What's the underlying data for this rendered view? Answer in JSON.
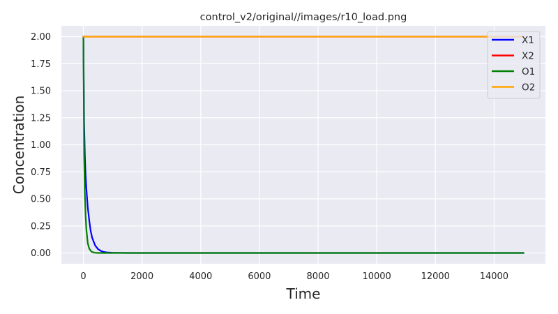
{
  "chart_data": {
    "type": "line",
    "title": "control_v2/original//images/r10_load.png",
    "xlabel": "Time",
    "ylabel": "Concentration",
    "xlim": [
      -750,
      15750
    ],
    "ylim": [
      -0.1,
      2.1
    ],
    "xticks": [
      0,
      2000,
      4000,
      6000,
      8000,
      10000,
      12000,
      14000
    ],
    "yticks": [
      0.0,
      0.25,
      0.5,
      0.75,
      1.0,
      1.25,
      1.5,
      1.75,
      2.0
    ],
    "ytick_labels": [
      "0.00",
      "0.25",
      "0.50",
      "0.75",
      "1.00",
      "1.25",
      "1.50",
      "1.75",
      "2.00"
    ],
    "grid": true,
    "legend_position": "top-right",
    "series": [
      {
        "name": "X1",
        "color": "#0000ff",
        "x": [
          0,
          25,
          50,
          75,
          100,
          150,
          200,
          250,
          300,
          400,
          500,
          600,
          700,
          800,
          1000,
          1500,
          3000,
          6000,
          10000,
          15000
        ],
        "y": [
          2.0,
          1.2,
          0.9,
          0.72,
          0.6,
          0.42,
          0.3,
          0.2,
          0.14,
          0.07,
          0.035,
          0.018,
          0.009,
          0.005,
          0.002,
          0.0,
          0.0,
          0.0,
          0.0,
          0.0
        ]
      },
      {
        "name": "X2",
        "color": "#ff0000",
        "x": [
          0,
          15000
        ],
        "y": [
          2.0,
          2.0
        ]
      },
      {
        "name": "O1",
        "color": "#008000",
        "x": [
          0,
          25,
          50,
          75,
          100,
          150,
          200,
          250,
          300,
          400,
          500,
          1000,
          15000
        ],
        "y": [
          2.0,
          0.9,
          0.55,
          0.35,
          0.22,
          0.09,
          0.04,
          0.02,
          0.008,
          0.002,
          0.0,
          0.0,
          0.0
        ]
      },
      {
        "name": "O2",
        "color": "#ffa500",
        "x": [
          0,
          15000
        ],
        "y": [
          2.0,
          2.0
        ]
      }
    ]
  }
}
